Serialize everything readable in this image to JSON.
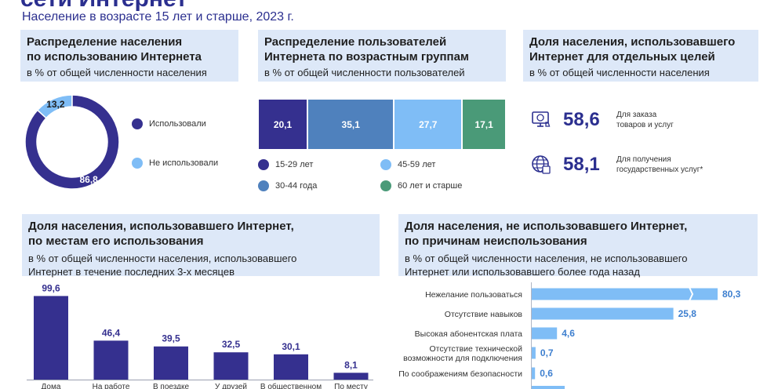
{
  "header": {
    "title": "сети Интернет",
    "subtitle": "Население в возрасте 15 лет и старше, 2023 г."
  },
  "panels": {
    "usage": {
      "title_l1": "Распределение населения",
      "title_l2": "по использованию Интернета",
      "subtitle": "в % от общей численности населения"
    },
    "age": {
      "title_l1": "Распределение пользователей",
      "title_l2": "Интернета по возрастным группам",
      "subtitle": "в % от общей численности пользователей"
    },
    "purposes": {
      "title_l1": "Доля населения, использовавшего",
      "title_l2": "Интернет для отдельных целей",
      "subtitle": "в % от общей численности населения"
    },
    "places": {
      "title_l1": "Доля населения, использовавшего Интернет,",
      "title_l2": "по местам его использования",
      "subtitle_l1": "в % от общей численности населения, использовавшего",
      "subtitle_l2": "Интернет в течение последних 3-х месяцев"
    },
    "reasons": {
      "title_l1": "Доля населения, не использовавшего Интернет,",
      "title_l2": "по причинам неиспользования",
      "subtitle_l1": "в % от общей численности населения, не использовавшего",
      "subtitle_l2": "Интернет или использовавшего более года назад"
    }
  },
  "purpose_stats": [
    {
      "value": "58,6",
      "label": "Для заказа\nтоваров и услуг",
      "icon": "shopping-icon"
    },
    {
      "value": "58,1",
      "label": "Для получения\nгосударственных услуг*",
      "icon": "gov-services-icon"
    }
  ],
  "colors": {
    "navy": "#35308f",
    "mid_blue": "#4f81bd",
    "light_blue": "#7fbdf6",
    "green": "#4a9a78",
    "panel_bg": "#dde8f8",
    "title_blue": "#2b2f8f"
  },
  "chart_data": [
    {
      "type": "pie",
      "categories": [
        "Использовали",
        "Не использовали"
      ],
      "values": [
        86.8,
        13.2
      ],
      "value_labels": [
        "86,8",
        "13,2"
      ],
      "legend": [
        "Использовали",
        "Не использовали"
      ],
      "colors": [
        "#35308f",
        "#7fbdf6"
      ]
    },
    {
      "type": "bar",
      "orientation": "horizontal-stacked",
      "categories": [
        "15-29 лет",
        "30-44 года",
        "45-59 лет",
        "60 лет и старше"
      ],
      "values": [
        20.1,
        35.1,
        27.7,
        17.1
      ],
      "value_labels": [
        "20,1",
        "35,1",
        "27,7",
        "17,1"
      ],
      "legend": [
        "15-29 лет",
        "30-44 года",
        "45-59 лет",
        "60 лет и старше"
      ],
      "colors": [
        "#35308f",
        "#4f81bd",
        "#7fbdf6",
        "#4a9a78"
      ]
    },
    {
      "type": "bar",
      "categories": [
        "Дома",
        "На работе",
        "В поездке",
        "У друзей",
        "В общественном",
        "По месту"
      ],
      "values": [
        99.6,
        46.4,
        39.5,
        32.5,
        30.1,
        8.1
      ],
      "value_labels": [
        "99,6",
        "46,4",
        "39,5",
        "32,5",
        "30,1",
        "8,1"
      ],
      "ylim": [
        0,
        100
      ],
      "grid": false
    },
    {
      "type": "bar",
      "orientation": "horizontal",
      "categories": [
        "Нежелание пользоваться",
        "Отсутствие навыков",
        "Высокая абонентская плата",
        "Отсутствие технической возможности для подключения",
        "По соображениям безопасности"
      ],
      "category_lines": [
        [
          "Нежелание пользоваться"
        ],
        [
          "Отсутствие навыков"
        ],
        [
          "Высокая абонентская плата"
        ],
        [
          "Отсутствие технической",
          "возможности для подключения"
        ],
        [
          "По соображениям безопасности"
        ]
      ],
      "values": [
        80.3,
        25.8,
        4.6,
        0.7,
        0.6
      ],
      "value_labels": [
        "80,3",
        "25,8",
        "4,6",
        "0,7",
        "0,6"
      ],
      "broken_axis": true,
      "grid": false
    }
  ]
}
